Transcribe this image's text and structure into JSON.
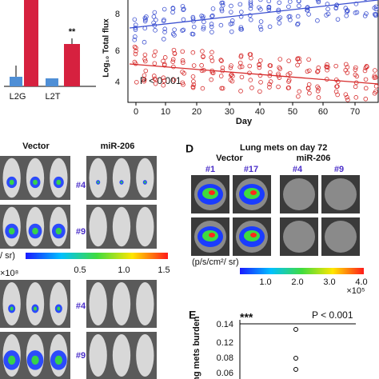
{
  "panel_top_left": {
    "significance": "**",
    "categories": [
      "L2G",
      "L2T"
    ]
  },
  "panel_top_right": {
    "y_label": "Log₁₀ Total flux",
    "y_ticks": [
      "8",
      "6",
      "4"
    ],
    "x_label": "Day",
    "x_ticks": [
      "0",
      "10",
      "20",
      "30",
      "40",
      "50",
      "60",
      "70"
    ],
    "p_value": "P < 0.001"
  },
  "panel_c": {
    "headers": [
      "Vector",
      "miR-206"
    ],
    "upper_ids": [
      "#4",
      "#9"
    ],
    "colorbar": {
      "unit": "/ sr)",
      "scale": "×10⁸",
      "ticks": [
        "0.5",
        "1.0",
        "1.5"
      ]
    },
    "lower_ids": [
      "#4",
      "#9"
    ]
  },
  "panel_d": {
    "letter": "D",
    "title": "Lung mets on day 72",
    "headers": [
      "Vector",
      "miR-206"
    ],
    "ids": [
      "#1",
      "#17",
      "#4",
      "#9"
    ],
    "colorbar": {
      "unit": "(p/s/cm²/ sr)",
      "scale": "×10⁵",
      "ticks": [
        "1.0",
        "2.0",
        "3.0",
        "4.0"
      ]
    }
  },
  "panel_e": {
    "letter": "E",
    "significance": "***",
    "p_value": "P < 0.001",
    "y_label": "ung mets burden",
    "y_ticks": [
      "0.14",
      "0.12",
      "0.08",
      "0.06"
    ]
  }
}
